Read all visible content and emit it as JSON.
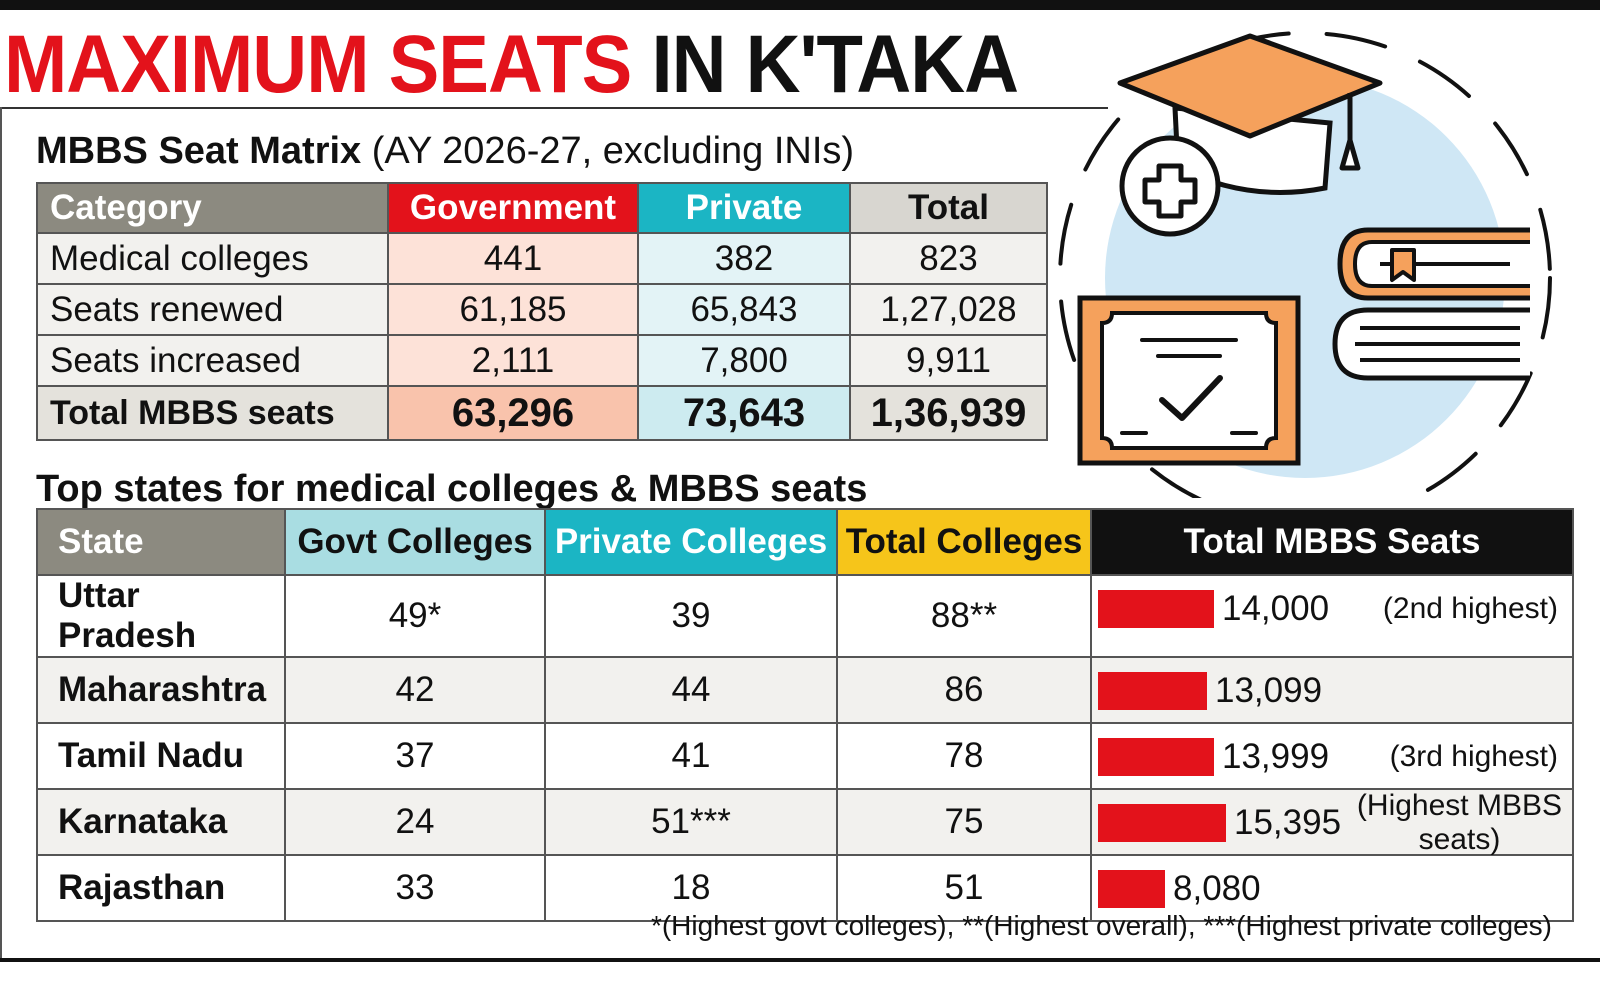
{
  "headline": {
    "red_part": "MAXIMUM SEATS",
    "black_part": "IN K'TAKA"
  },
  "matrix": {
    "title_bold": "MBBS Seat Matrix",
    "title_rest": "(AY 2026-27, excluding INIs)",
    "headers": [
      "Category",
      "Government",
      "Private",
      "Total"
    ],
    "rows": [
      [
        "Medical colleges",
        "441",
        "382",
        "823"
      ],
      [
        "Seats renewed",
        "61,185",
        "65,843",
        "1,27,028"
      ],
      [
        "Seats increased",
        "2,111",
        "7,800",
        "9,911"
      ],
      [
        "Total MBBS seats",
        "63,296",
        "73,643",
        "1,36,939"
      ]
    ]
  },
  "states": {
    "title": "Top states for medical colleges & MBBS seats",
    "headers": [
      "State",
      "Govt Colleges",
      "Private Colleges",
      "Total Colleges",
      "Total MBBS Seats"
    ],
    "rows": [
      {
        "state": "Uttar Pradesh",
        "govt": "49*",
        "private": "39",
        "total": "88**",
        "seats": "14,000",
        "note": "(2nd highest)"
      },
      {
        "state": "Maharashtra",
        "govt": "42",
        "private": "44",
        "total": "86",
        "seats": "13,099",
        "note": ""
      },
      {
        "state": "Tamil Nadu",
        "govt": "37",
        "private": "41",
        "total": "78",
        "seats": "13,999",
        "note": "(3rd highest)"
      },
      {
        "state": "Karnataka",
        "govt": "24",
        "private": "51***",
        "total": "75",
        "seats": "15,395",
        "note": "(Highest MBBS seats)"
      },
      {
        "state": "Rajasthan",
        "govt": "33",
        "private": "18",
        "total": "51",
        "seats": "8,080",
        "note": ""
      }
    ],
    "footnote": "*(Highest govt colleges), **(Highest overall), ***(Highest private colleges)"
  },
  "chart_data": {
    "type": "bar",
    "categories": [
      "Uttar Pradesh",
      "Maharashtra",
      "Tamil Nadu",
      "Karnataka",
      "Rajasthan"
    ],
    "values": [
      14000,
      13099,
      13999,
      15395,
      8080
    ],
    "ylabel": "Total MBBS Seats",
    "orientation": "horizontal"
  },
  "colors": {
    "red": "#e3121b",
    "teal": "#1bb5c4",
    "light_teal": "#a9dde2",
    "yellow": "#f6c51a",
    "grey": "#8c8a80",
    "orange": "#f5a15c",
    "light_blue": "#cfe7f5"
  },
  "illustration": {
    "icons": [
      "graduation-cap-icon",
      "medical-cross-icon",
      "books-icon",
      "certificate-icon"
    ]
  }
}
